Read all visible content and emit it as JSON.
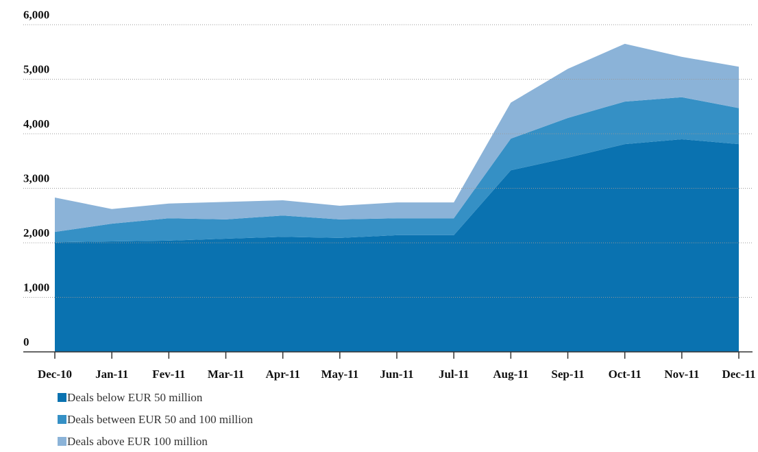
{
  "chart_data": {
    "type": "stacked_area",
    "categories": [
      "Dec-10",
      "Jan-11",
      "Fev-11",
      "Mar-11",
      "Apr-11",
      "May-11",
      "Jun-11",
      "Jul-11",
      "Aug-11",
      "Sep-11",
      "Oct-11",
      "Nov-11",
      "Dec-11"
    ],
    "series": [
      {
        "name": "Deals below EUR 50 million",
        "color": "#0a72b0",
        "values": [
          2010,
          2025,
          2040,
          2075,
          2110,
          2090,
          2140,
          2140,
          3330,
          3560,
          3810,
          3900,
          3810
        ]
      },
      {
        "name": "Deals between EUR 50 and 100 million",
        "color": "#3590c5",
        "values": [
          190,
          325,
          410,
          355,
          390,
          340,
          310,
          310,
          580,
          730,
          780,
          770,
          660
        ]
      },
      {
        "name": "Deals above EUR 100 million",
        "color": "#8bb3d8",
        "values": [
          630,
          270,
          270,
          320,
          280,
          250,
          290,
          290,
          660,
          900,
          1060,
          740,
          760
        ]
      }
    ],
    "ylim": [
      0,
      6000
    ],
    "yticks": [
      0,
      {
        "value": 1000,
        "label": "1,000"
      },
      {
        "value": 2000,
        "label": "2,000"
      },
      {
        "value": 3000,
        "label": "3,000"
      },
      {
        "value": 4000,
        "label": "4,000"
      },
      {
        "value": 5000,
        "label": "5,000"
      },
      {
        "value": 6000,
        "label": "6,000"
      }
    ],
    "grid": true
  }
}
